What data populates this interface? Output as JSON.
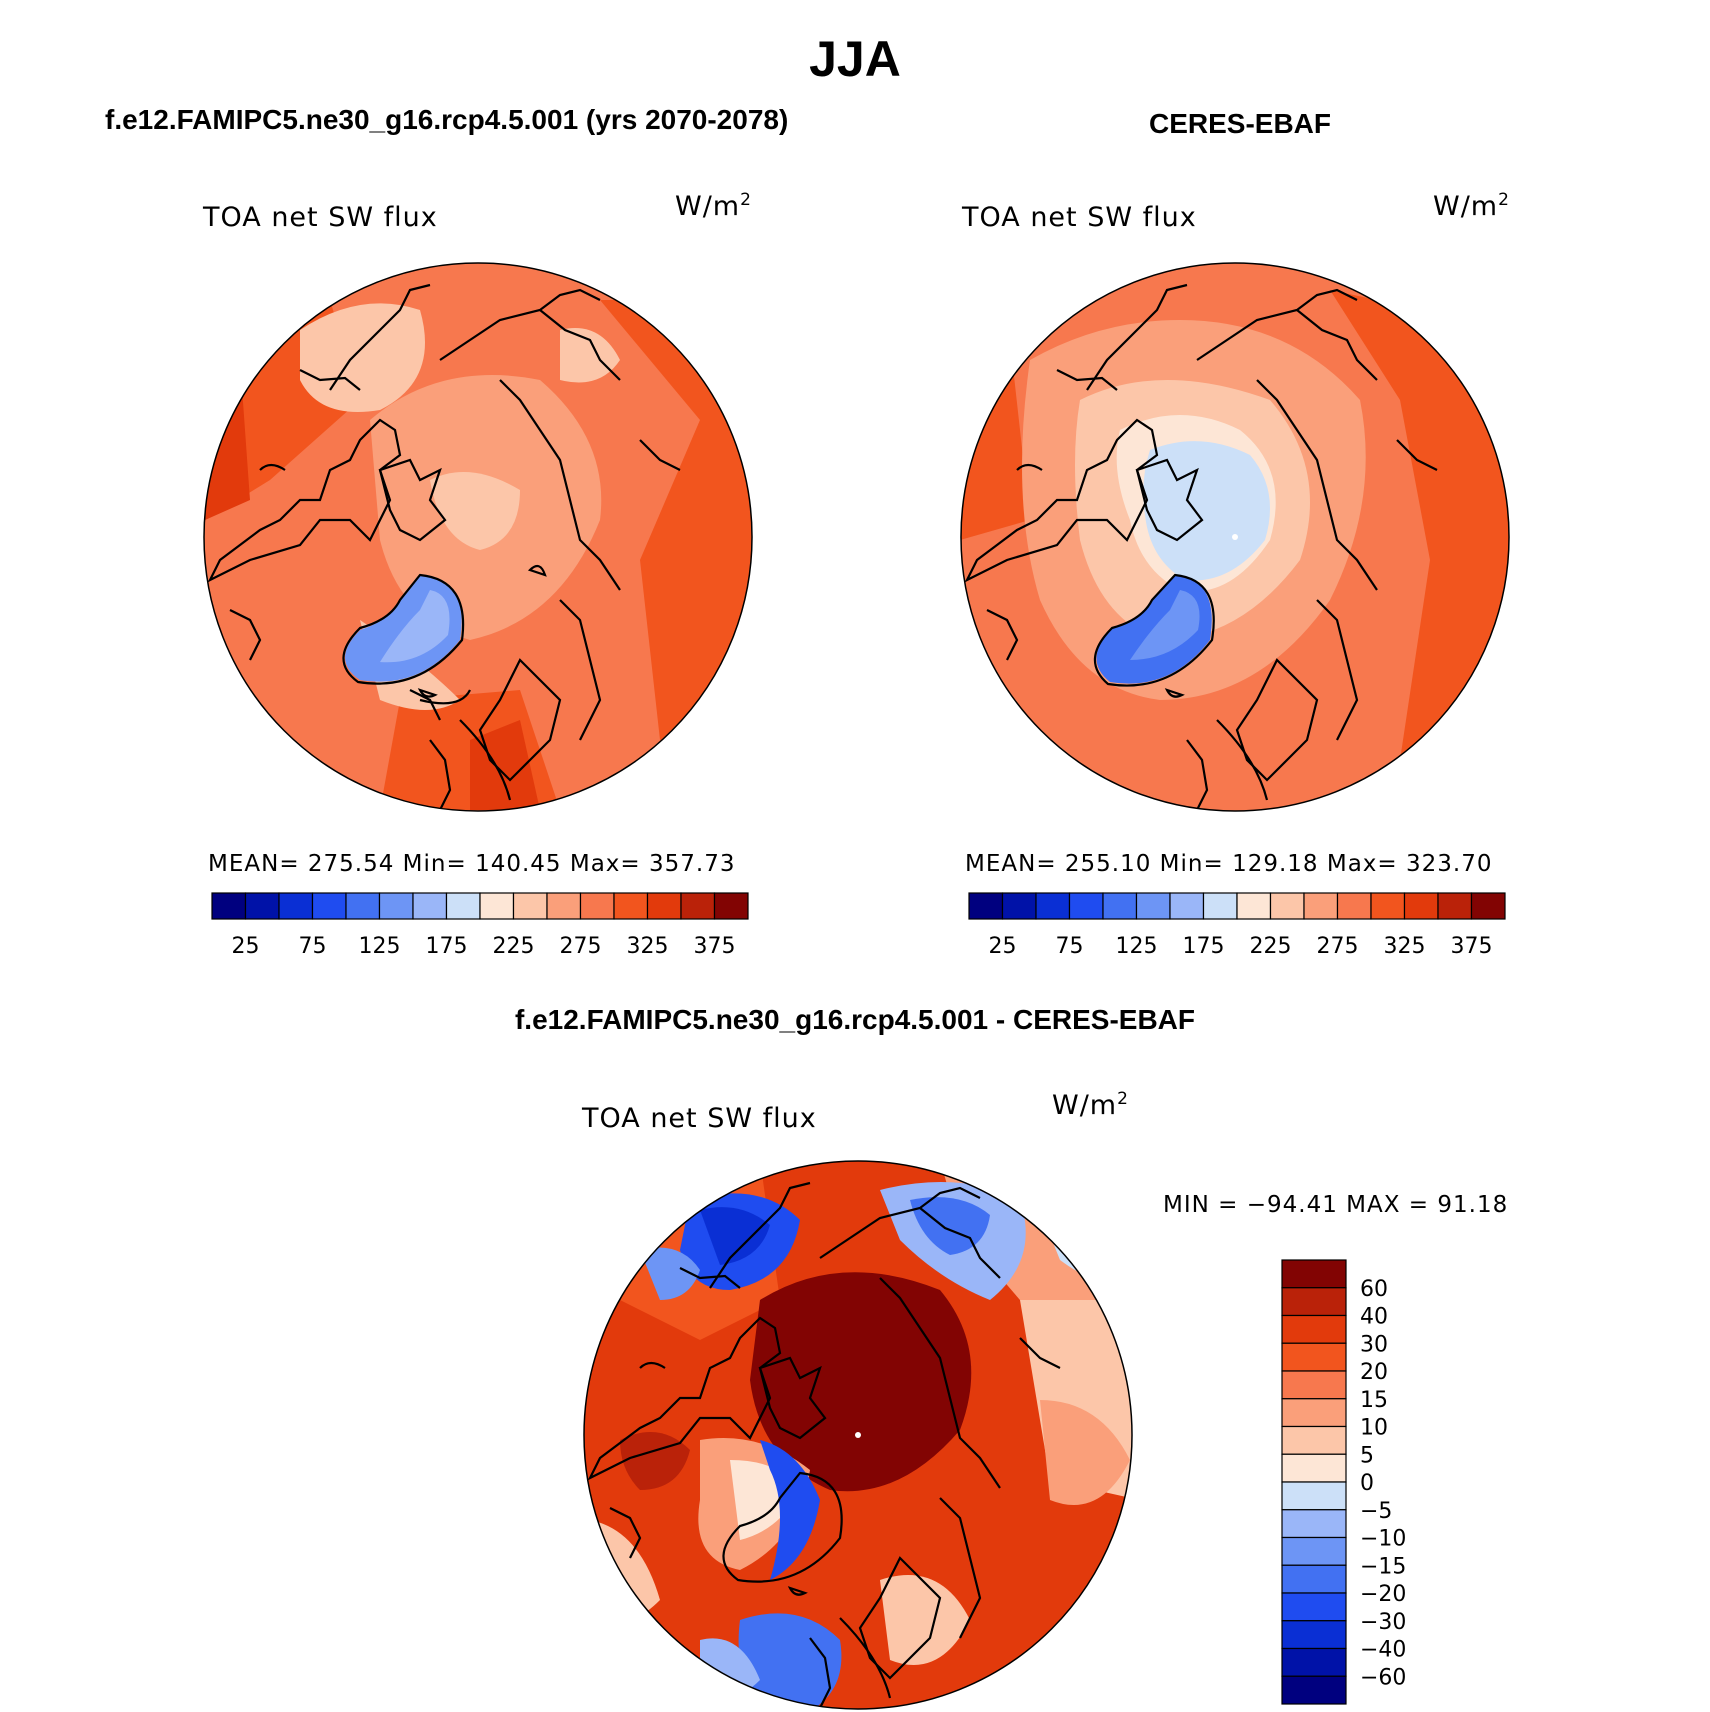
{
  "title": "JJA",
  "panels": {
    "model": {
      "header": "f.e12.FAMIPC5.ne30_g16.rcp4.5.001 (yrs 2070-2078)",
      "variable": "TOA net SW flux",
      "units": "W/m",
      "units_exp": "2",
      "stats": "MEAN= 275.54   Min= 140.45   Max= 357.73",
      "colorbar_ticks": [
        "25",
        "75",
        "125",
        "175",
        "225",
        "275",
        "325",
        "375"
      ]
    },
    "obs": {
      "header": "CERES-EBAF",
      "variable": "TOA net SW flux",
      "units": "W/m",
      "units_exp": "2",
      "stats": "MEAN= 255.10   Min= 129.18   Max= 323.70",
      "colorbar_ticks": [
        "25",
        "75",
        "125",
        "175",
        "225",
        "275",
        "325",
        "375"
      ]
    },
    "diff": {
      "header": "f.e12.FAMIPC5.ne30_g16.rcp4.5.001 - CERES-EBAF",
      "variable": "TOA net SW flux",
      "units": "W/m",
      "units_exp": "2",
      "stats": "MIN = −94.41 MAX =  91.18",
      "colorbar_ticks": [
        "60",
        "40",
        "30",
        "20",
        "15",
        "10",
        "5",
        "0",
        "−5",
        "−10",
        "−15",
        "−20",
        "−30",
        "−40",
        "−60"
      ]
    }
  },
  "colors": {
    "abs_scale": [
      "#00007f",
      "#0012a8",
      "#0a2fd4",
      "#1f4cf0",
      "#4271f2",
      "#6d95f5",
      "#9ab6f8",
      "#cce0f8",
      "#fde6d6",
      "#fcc6a9",
      "#fa9f7a",
      "#f7784e",
      "#f2551e",
      "#e23a0c",
      "#ba2209",
      "#820403"
    ],
    "diff_scale": [
      "#820403",
      "#ba2209",
      "#e23a0c",
      "#f2551e",
      "#f7784e",
      "#fa9f7a",
      "#fcc6a9",
      "#fde6d6",
      "#cce0f8",
      "#9ab6f8",
      "#6d95f5",
      "#4271f2",
      "#1f4cf0",
      "#0a2fd4",
      "#0012a8",
      "#00007f"
    ]
  }
}
